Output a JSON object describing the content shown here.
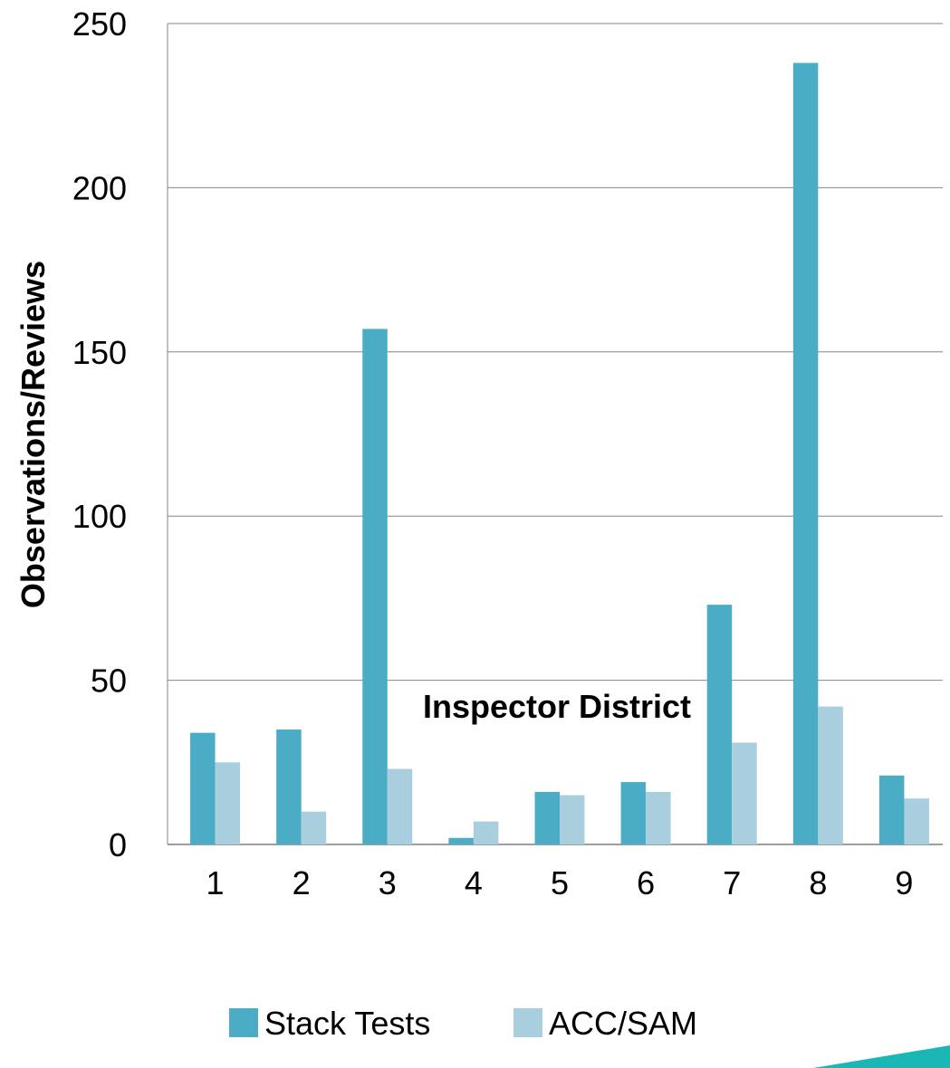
{
  "chart_data": {
    "type": "bar",
    "categories": [
      "1",
      "2",
      "3",
      "4",
      "5",
      "6",
      "7",
      "8",
      "9"
    ],
    "series": [
      {
        "name": "Stack Tests",
        "color": "#4bacc6",
        "values": [
          34,
          35,
          157,
          2,
          16,
          19,
          73,
          238,
          21
        ]
      },
      {
        "name": "ACC/SAM",
        "color": "#a9cfde",
        "values": [
          25,
          10,
          23,
          7,
          15,
          16,
          31,
          42,
          14
        ]
      }
    ],
    "xlabel": "Inspector District",
    "ylabel": "Observations/Reviews",
    "ylim": [
      0,
      250
    ],
    "yticks": [
      0,
      50,
      100,
      150,
      200,
      250
    ],
    "grid": true,
    "legend": "bottom",
    "accent_color": "#1bb6b6"
  }
}
